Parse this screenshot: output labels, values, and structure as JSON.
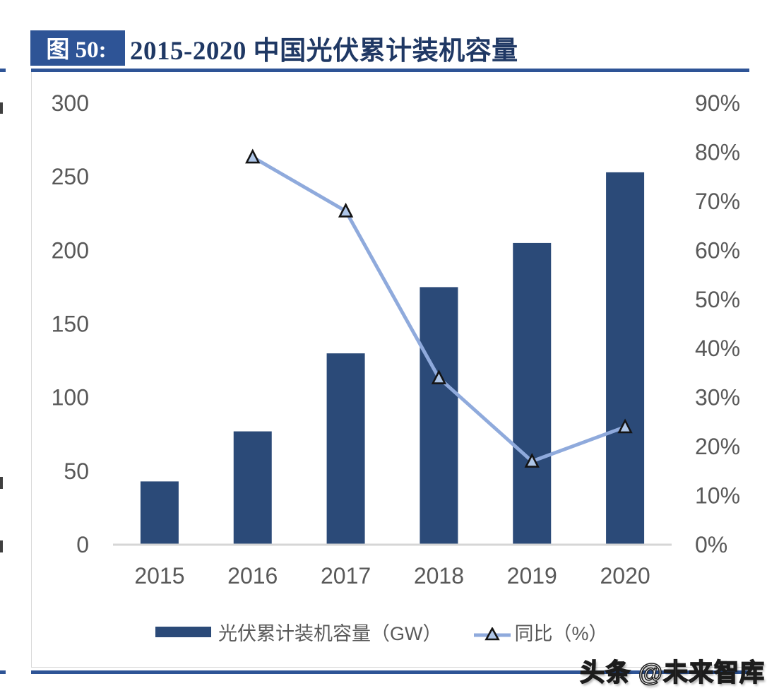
{
  "page": {
    "figure_label": "图 50:",
    "title": "2015-2020 中国光伏累计装机容量",
    "watermark": "头条 @未来智库"
  },
  "colors": {
    "navy_rule_and_badge": "#2E5496",
    "title_text": "#1F3864",
    "bar_fill": "#2B4A78",
    "line_stroke": "#8FAADC",
    "marker_fill": "#AEC6E8",
    "marker_stroke": "#141414",
    "axis_text": "#595959",
    "axis_baseline": "#D6D6D6",
    "frame_border": "#D9D9D9",
    "watermark_fill": "#FFFFFF"
  },
  "chart_data": {
    "type": "bar",
    "subtype": "combo-bar-line-dual-axis",
    "title": "2015-2020 中国光伏累计装机容量",
    "categories": [
      "2015",
      "2016",
      "2017",
      "2018",
      "2019",
      "2020"
    ],
    "series": [
      {
        "name": "光伏累计装机容量（GW）",
        "type": "bar",
        "axis": "left",
        "values": [
          43,
          77,
          130,
          175,
          205,
          253
        ]
      },
      {
        "name": "同比（%）",
        "type": "line",
        "axis": "right",
        "marker": "triangle",
        "values": [
          null,
          79,
          68,
          34,
          17,
          24
        ]
      }
    ],
    "left_axis": {
      "ticks": [
        0,
        50,
        100,
        150,
        200,
        250,
        300
      ],
      "min": 0,
      "max": 300
    },
    "right_axis": {
      "ticks": [
        0,
        10,
        20,
        30,
        40,
        50,
        60,
        70,
        80,
        90
      ],
      "unit": "%",
      "min": 0,
      "max": 90
    },
    "gridlines": false,
    "legend_position": "bottom"
  }
}
